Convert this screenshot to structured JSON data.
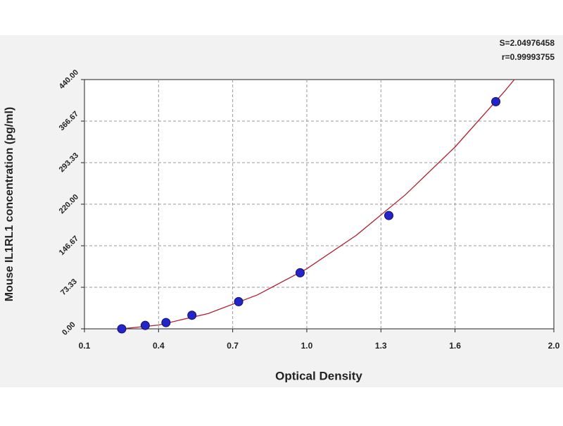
{
  "chart_data": {
    "type": "scatter",
    "annotations": [
      "S=2.04976458",
      "r=0.99993755"
    ],
    "x_label": "Optical Density",
    "y_label": "Mouse IL1RL1 concentration (pg/ml)",
    "xlim": [
      0.1,
      2.0
    ],
    "xticks": [
      {
        "value": 0.1,
        "label": "0.1"
      },
      {
        "value": 0.4,
        "label": "0.4"
      },
      {
        "value": 0.7,
        "label": "0.7"
      },
      {
        "value": 1.0,
        "label": "1.0"
      },
      {
        "value": 1.3,
        "label": "1.3"
      },
      {
        "value": 1.6,
        "label": "1.6"
      },
      {
        "value": 2.0,
        "label": "2.0"
      }
    ],
    "ylim": [
      0,
      440
    ],
    "yticks": [
      {
        "value": 0,
        "label": "0.00"
      },
      {
        "value": 73.33,
        "label": "73.33"
      },
      {
        "value": 146.67,
        "label": "146.67"
      },
      {
        "value": 220,
        "label": "220.00"
      },
      {
        "value": 293.33,
        "label": "293.33"
      },
      {
        "value": 366.67,
        "label": "366.67"
      },
      {
        "value": 440,
        "label": "440.00"
      }
    ],
    "grid": true,
    "series": [
      {
        "mode": "line",
        "color": "#b02030",
        "x": [
          0.25,
          0.4,
          0.6,
          0.8,
          1.0,
          1.2,
          1.4,
          1.6,
          1.8,
          1.84
        ],
        "values": [
          0,
          6.7,
          26.9,
          59.9,
          106,
          165,
          237,
          321,
          419,
          440
        ]
      },
      {
        "mode": "markers",
        "color": "#2424c8",
        "x": [
          0.251,
          0.346,
          0.43,
          0.535,
          0.724,
          0.973,
          1.332,
          1.765
        ],
        "values": [
          0,
          6,
          11,
          24,
          48,
          99,
          200,
          401
        ]
      }
    ]
  }
}
